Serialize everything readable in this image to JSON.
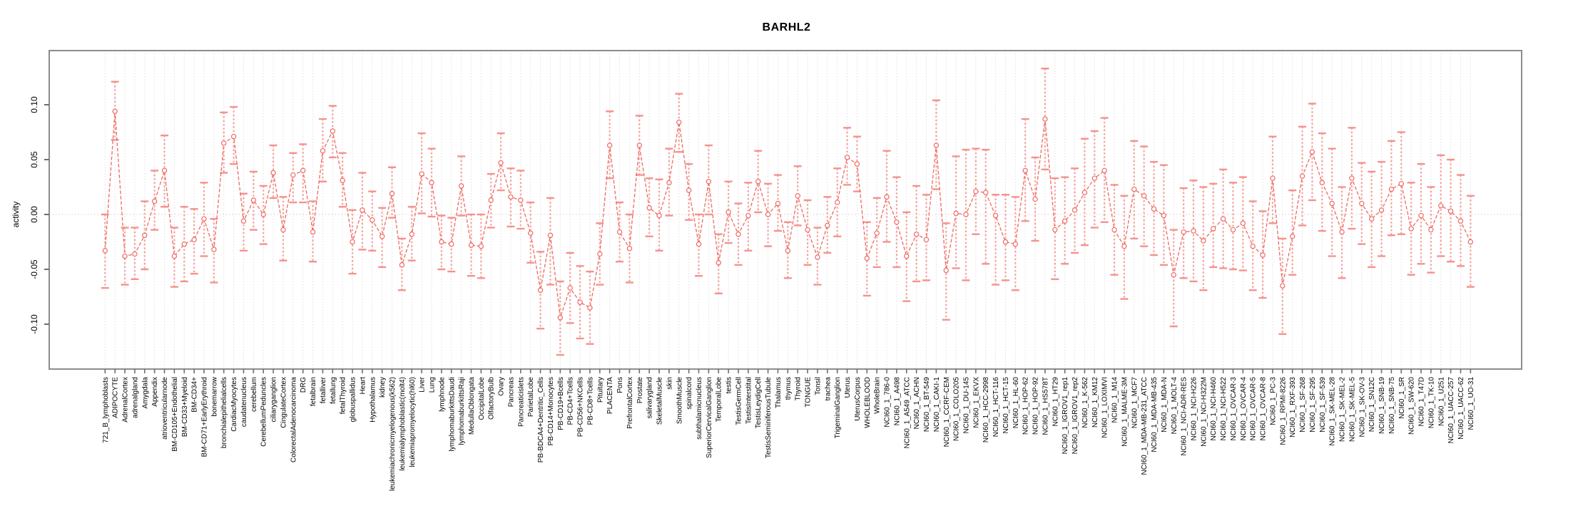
{
  "chart_data": {
    "type": "line",
    "subtype": "point-estimates-with-error-bars",
    "title": "BARHL2",
    "xlabel": "",
    "ylabel": "activity",
    "ylim": [
      -0.145,
      0.15
    ],
    "ytick_values": [
      0.1,
      0.05,
      0.0,
      -0.05,
      -0.1
    ],
    "ytick_labels": [
      "0.10",
      "0.05",
      "0.00",
      "-0.05",
      "-0.10"
    ],
    "grid": "vertical-dotted-per-category",
    "zero_line": "dotted",
    "legend": "none",
    "marker": "open-circle",
    "colors": {
      "series_line": "#ee6a63",
      "error_bar": "#f7a09a",
      "error_cap": "#f5928c",
      "gridline": "#dfdfdf",
      "zero_line": "#dfc9c9",
      "box_border": "#8c8c8c",
      "tick": "#6e6e6e",
      "text": "#000000"
    },
    "categories": [
      "721_B_lymphoblasts",
      "ADIPOCYTE",
      "AdrenalCortex",
      "adrenalgland",
      "Amygdala",
      "Appendix",
      "atrioventricularnode",
      "BM-CD105+Endothelial",
      "BM-CD33+Myeloid",
      "BM-CD34+",
      "BM-CD71+EarlyErythroid",
      "bonemarrow",
      "bronchialepithelialcells",
      "CardiacMyocytes",
      "caudatenucleus",
      "cerebellum",
      "CerebellumPeduncles",
      "ciliaryganglion",
      "CingulateCortex",
      "ColorectalAdenocarcinoma",
      "DRG",
      "fetalbrain",
      "fetalliver",
      "fetallung",
      "fetalThyroid",
      "globuspallidus",
      "Heart",
      "Hypothalamus",
      "kidney",
      "leukemiachronicmyelogenous(k562)",
      "leukemialymphoblastic(molt4)",
      "leukemiapromyelocytic(hl60)",
      "Liver",
      "Lung",
      "lymphnode",
      "lymphomaburkittsDaudi",
      "lymphomaburkittsRaji",
      "MedullaOblongata",
      "OccipitalLobe",
      "OlfactoryBulb",
      "Ovary",
      "Pancreas",
      "Pancreaticislets",
      "ParietalLobe",
      "PB-BDCA4+Dentritic_Cells",
      "PB-CD14+Monocytes",
      "PB-CD19+Bcells",
      "PB-CD4+Tcells",
      "PB-CD56+NKCells",
      "PB-CD8+Tcells",
      "Pituitary",
      "PLACENTA",
      "Pons",
      "PrefrontalCortex",
      "Prostate",
      "salivarygland",
      "SkeletalMuscle",
      "skin",
      "SmoothMuscle",
      "spinalcord",
      "subthalamicnucleus",
      "SuperiorCervicalGanglion",
      "TemporalLobe",
      "testis",
      "TestisGermCell",
      "TestisInterstital",
      "TestisLeydigCell",
      "TestisSeminiferousTubule",
      "Thalamus",
      "thymus",
      "Thyroid",
      "TONGUE",
      "Tonsil",
      "trachea",
      "TrigeminalGanglion",
      "Uterus",
      "UterusCorpus",
      "WHOLEBLOOD",
      "WholeBrain",
      "NCI60_1_786-0",
      "NCI60_1_A498",
      "NCI60_1_A549_ATCC",
      "NCI60_1_ACHN",
      "NCI60_1_BT-549",
      "NCI60_1_CAKI-1",
      "NCI60_1_CCRF-CEM",
      "NCI60_1_COLO205",
      "NCI60_1_DU-145",
      "NCI60_1_EKVX",
      "NCI60_1_HCC-2998",
      "NCI60_1_HCT-116",
      "NCI60_1_HCT-15",
      "NCI60_1_HL-60",
      "NCI60_1_HOP-62",
      "NCI60_1_HOP-92",
      "NCI60_1_HS578T",
      "NCI60_1_HT29",
      "NCI60_1_IGROV1_rep1",
      "NCI60_1_IGROV1_rep2",
      "NCI60_1_K-562",
      "NCI60_1_KM12",
      "NCI60_1_LOXIMVI",
      "NCI60_1_M14",
      "NCI60_1_MALME-3M",
      "NCI60_1_MCF7",
      "NCI60_1_MDA-MB-231_ATCC",
      "NCI60_1_MDA-MB-435",
      "NCI60_1_MDA-N",
      "NCI60_1_MOLT-4",
      "NCI60_1_NCI-ADR-RES",
      "NCI60_1_NCI-H226",
      "NCI60_1_NCI-H322M",
      "NCI60_1_NCI-H460",
      "NCI60_1_NCI-H522",
      "NCI60_1_OVCAR-3",
      "NCI60_1_OVCAR-4",
      "NCI60_1_OVCAR-5",
      "NCI60_1_OVCAR-8",
      "NCI60_1_PC-3",
      "NCI60_1_RPMI-8226",
      "NCI60_1_RXF-393",
      "NCI60_1_SF-268",
      "NCI60_1_SF-295",
      "NCI60_1_SF-539",
      "NCI60_1_SK-MEL-28",
      "NCI60_1_SK-MEL-2",
      "NCI60_1_SK-MEL-5",
      "NCI60_1_SK-OV-3",
      "NCI60_1_SN12C",
      "NCI60_1_SNB-19",
      "NCI60_1_SNB-75",
      "NCI60_1_SR",
      "NCI60_1_SW-620",
      "NCI60_1_T47D",
      "NCI60_1_TK-10",
      "NCI60_1_U251",
      "NCI60_1_UACC-257",
      "NCI60_1_UACC-62",
      "NCI60_1_UO-31"
    ],
    "values": [
      -0.033,
      0.094,
      -0.038,
      -0.036,
      -0.019,
      0.012,
      0.04,
      -0.038,
      -0.027,
      -0.023,
      -0.004,
      -0.032,
      0.065,
      0.071,
      -0.006,
      0.013,
      0.0,
      0.038,
      -0.014,
      0.036,
      0.04,
      -0.016,
      0.058,
      0.076,
      0.031,
      -0.025,
      0.004,
      -0.005,
      -0.02,
      0.019,
      -0.046,
      -0.018,
      0.037,
      0.029,
      -0.025,
      -0.027,
      0.026,
      -0.028,
      -0.029,
      0.013,
      0.047,
      0.016,
      0.013,
      -0.017,
      -0.069,
      -0.019,
      -0.094,
      -0.067,
      -0.08,
      -0.085,
      -0.036,
      0.063,
      -0.016,
      -0.031,
      0.063,
      0.006,
      -0.001,
      0.029,
      0.084,
      0.022,
      -0.027,
      0.03,
      -0.044,
      0.002,
      -0.018,
      -0.001,
      0.03,
      0.0,
      0.01,
      -0.033,
      0.017,
      -0.014,
      -0.039,
      -0.01,
      0.011,
      0.052,
      0.046,
      -0.04,
      -0.017,
      0.016,
      -0.007,
      -0.038,
      -0.018,
      -0.023,
      0.063,
      -0.051,
      0.001,
      0.0,
      0.021,
      0.02,
      -0.001,
      -0.025,
      -0.027,
      0.04,
      0.014,
      0.087,
      -0.014,
      -0.006,
      0.004,
      0.02,
      0.033,
      0.04,
      -0.014,
      -0.029,
      0.023,
      0.017,
      0.005,
      -0.001,
      -0.055,
      -0.016,
      -0.015,
      -0.024,
      -0.013,
      -0.004,
      -0.014,
      -0.008,
      -0.029,
      -0.037,
      0.033,
      -0.065,
      -0.02,
      0.035,
      0.057,
      0.029,
      0.01,
      -0.016,
      0.033,
      0.01,
      -0.004,
      0.004,
      0.023,
      0.028,
      -0.013,
      -0.001,
      -0.014,
      0.008,
      0.003,
      -0.006,
      -0.025
    ],
    "err_low": [
      -0.067,
      0.068,
      -0.064,
      -0.059,
      -0.05,
      -0.014,
      0.007,
      -0.066,
      -0.061,
      -0.054,
      -0.038,
      -0.062,
      0.038,
      0.046,
      -0.033,
      -0.014,
      -0.027,
      0.015,
      -0.042,
      0.011,
      0.011,
      -0.043,
      0.03,
      0.052,
      0.007,
      -0.054,
      -0.032,
      -0.033,
      -0.048,
      -0.003,
      -0.069,
      -0.042,
      0.001,
      -0.002,
      -0.05,
      -0.052,
      -0.001,
      -0.056,
      -0.058,
      -0.012,
      0.022,
      -0.011,
      -0.013,
      -0.044,
      -0.104,
      -0.064,
      -0.128,
      -0.099,
      -0.113,
      -0.118,
      -0.064,
      0.033,
      -0.043,
      -0.062,
      0.036,
      -0.02,
      -0.033,
      -0.001,
      0.057,
      -0.005,
      -0.056,
      0.0,
      -0.072,
      -0.026,
      -0.046,
      -0.033,
      0.002,
      -0.029,
      -0.015,
      -0.058,
      -0.01,
      -0.046,
      -0.064,
      -0.035,
      -0.02,
      0.027,
      0.021,
      -0.074,
      -0.048,
      -0.025,
      -0.048,
      -0.079,
      -0.061,
      -0.06,
      0.023,
      -0.096,
      -0.049,
      -0.06,
      -0.018,
      -0.045,
      -0.064,
      -0.06,
      -0.069,
      -0.006,
      -0.024,
      0.041,
      -0.059,
      -0.045,
      -0.035,
      -0.028,
      -0.012,
      -0.007,
      -0.055,
      -0.077,
      -0.022,
      -0.029,
      -0.037,
      -0.046,
      -0.102,
      -0.058,
      -0.061,
      -0.069,
      -0.048,
      -0.049,
      -0.05,
      -0.051,
      -0.069,
      -0.076,
      -0.008,
      -0.109,
      -0.055,
      -0.01,
      0.013,
      -0.015,
      -0.038,
      -0.058,
      -0.013,
      -0.027,
      -0.048,
      -0.038,
      -0.019,
      -0.018,
      -0.055,
      -0.045,
      -0.053,
      -0.038,
      -0.043,
      -0.047,
      -0.066
    ],
    "err_high": [
      0.0,
      0.121,
      -0.012,
      -0.012,
      0.012,
      0.04,
      0.072,
      -0.012,
      0.007,
      0.005,
      0.029,
      -0.004,
      0.093,
      0.098,
      0.019,
      0.039,
      0.026,
      0.063,
      0.016,
      0.056,
      0.064,
      0.012,
      0.087,
      0.099,
      0.056,
      0.004,
      0.038,
      0.021,
      0.006,
      0.043,
      -0.022,
      0.007,
      0.074,
      0.06,
      -0.001,
      -0.003,
      0.053,
      0.0,
      0.0,
      0.037,
      0.074,
      0.042,
      0.04,
      0.011,
      -0.034,
      0.015,
      -0.061,
      -0.035,
      -0.047,
      -0.052,
      -0.008,
      0.094,
      0.011,
      0.0,
      0.09,
      0.033,
      0.032,
      0.06,
      0.11,
      0.046,
      0.0,
      0.063,
      -0.018,
      0.03,
      0.01,
      0.029,
      0.058,
      0.028,
      0.036,
      -0.007,
      0.044,
      0.013,
      -0.012,
      0.016,
      0.042,
      0.079,
      0.071,
      -0.007,
      0.015,
      0.058,
      0.034,
      0.002,
      0.026,
      0.018,
      0.104,
      -0.008,
      0.053,
      0.059,
      0.06,
      0.059,
      0.018,
      0.018,
      0.016,
      0.087,
      0.052,
      0.133,
      0.033,
      0.034,
      0.042,
      0.069,
      0.076,
      0.088,
      0.027,
      0.017,
      0.067,
      0.062,
      0.048,
      0.045,
      -0.014,
      0.024,
      0.031,
      0.025,
      0.028,
      0.041,
      0.029,
      0.034,
      0.012,
      0.003,
      0.071,
      -0.022,
      0.022,
      0.08,
      0.101,
      0.074,
      0.06,
      0.025,
      0.079,
      0.047,
      0.039,
      0.048,
      0.067,
      0.075,
      0.029,
      0.046,
      0.025,
      0.054,
      0.05,
      0.036,
      0.017
    ]
  }
}
